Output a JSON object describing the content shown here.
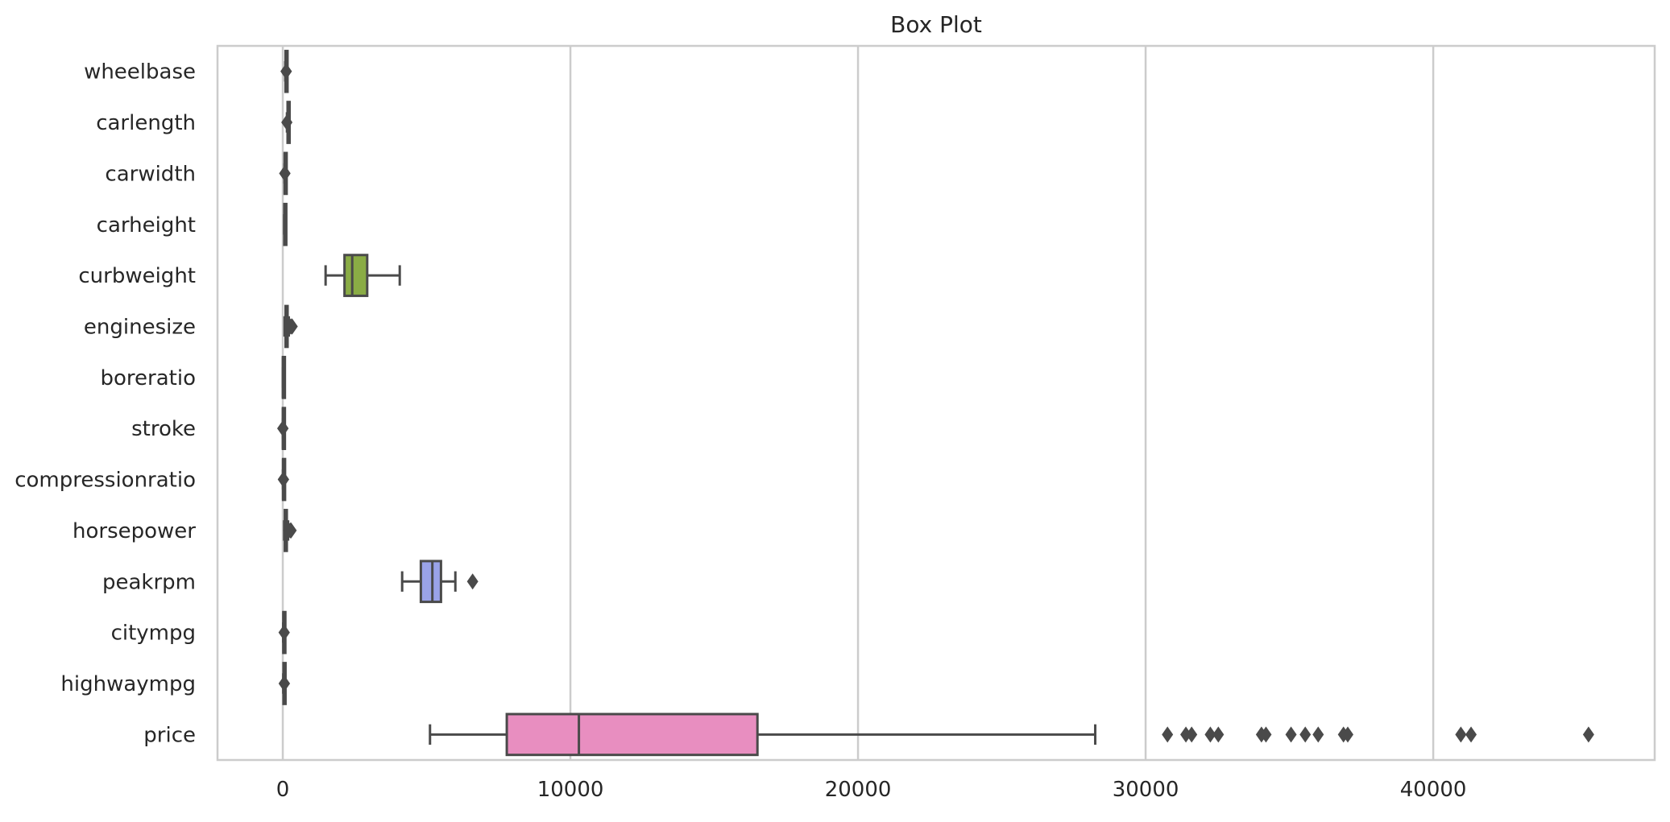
{
  "chart_data": {
    "type": "box",
    "orientation": "horizontal",
    "title": "Box Plot",
    "xlabel": "",
    "ylabel": "",
    "xlim": [
      -2270,
      47700
    ],
    "xticks": [
      0,
      10000,
      20000,
      30000,
      40000
    ],
    "xtick_labels": [
      "0",
      "10000",
      "20000",
      "30000",
      "40000"
    ],
    "grid": "vertical",
    "categories": [
      "wheelbase",
      "carlength",
      "carwidth",
      "carheight",
      "curbweight",
      "enginesize",
      "boreratio",
      "stroke",
      "compressionratio",
      "horsepower",
      "peakrpm",
      "citympg",
      "highwaympg",
      "price"
    ],
    "boxes": [
      {
        "name": "wheelbase",
        "color": "#e08b8b",
        "whislo": 86.6,
        "q1": 94.5,
        "med": 97.0,
        "q3": 102.4,
        "whishi": 114.2,
        "fliers": [
          115.6,
          115.6,
          120.9
        ]
      },
      {
        "name": "carlength",
        "color": "#e09c6a",
        "whislo": 144.6,
        "q1": 166.3,
        "med": 173.2,
        "q3": 183.1,
        "whishi": 208.1,
        "fliers": [
          141.1
        ]
      },
      {
        "name": "carwidth",
        "color": "#c4a55a",
        "whislo": 60.3,
        "q1": 64.1,
        "med": 65.5,
        "q3": 66.9,
        "whishi": 70.9,
        "fliers": [
          71.4,
          71.7,
          72.0,
          72.3
        ]
      },
      {
        "name": "carheight",
        "color": "#a3ae58",
        "whislo": 47.8,
        "q1": 52.0,
        "med": 54.1,
        "q3": 55.5,
        "whishi": 59.8,
        "fliers": []
      },
      {
        "name": "curbweight",
        "color": "#8aac45",
        "whislo": 1488,
        "q1": 2145,
        "med": 2414,
        "q3": 2935,
        "whishi": 4066,
        "fliers": []
      },
      {
        "name": "enginesize",
        "color": "#5fb37a",
        "whislo": 61,
        "q1": 97,
        "med": 120,
        "q3": 141,
        "whishi": 209,
        "fliers": [
          234,
          258,
          304,
          308,
          326
        ]
      },
      {
        "name": "boreratio",
        "color": "#5fb5a3",
        "whislo": 2.54,
        "q1": 3.15,
        "med": 3.31,
        "q3": 3.58,
        "whishi": 3.94,
        "fliers": []
      },
      {
        "name": "stroke",
        "color": "#5fb1bd",
        "whislo": 2.64,
        "q1": 3.11,
        "med": 3.29,
        "q3": 3.41,
        "whishi": 3.86,
        "fliers": [
          2.07,
          2.19,
          4.17
        ]
      },
      {
        "name": "compressionratio",
        "color": "#66a9d6",
        "whislo": 7.0,
        "q1": 8.6,
        "med": 9.0,
        "q3": 9.4,
        "whishi": 10.5,
        "fliers": [
          21.0,
          22.0,
          23.0
        ]
      },
      {
        "name": "horsepower",
        "color": "#7ea4e0",
        "whislo": 48,
        "q1": 70,
        "med": 95,
        "q3": 116,
        "whishi": 184,
        "fliers": [
          200,
          207,
          262,
          288
        ]
      },
      {
        "name": "peakrpm",
        "color": "#9aa3e8",
        "whislo": 4150,
        "q1": 4800,
        "med": 5200,
        "q3": 5500,
        "whishi": 6000,
        "fliers": [
          6600
        ]
      },
      {
        "name": "citympg",
        "color": "#c48fe0",
        "whislo": 13,
        "q1": 19,
        "med": 24,
        "q3": 30,
        "whishi": 45,
        "fliers": [
          47,
          49
        ]
      },
      {
        "name": "highwaympg",
        "color": "#e08ed0",
        "whislo": 16,
        "q1": 25,
        "med": 30,
        "q3": 34,
        "whishi": 47,
        "fliers": [
          50,
          53,
          54
        ]
      },
      {
        "name": "price",
        "color": "#e88ec0",
        "whislo": 5118,
        "q1": 7788,
        "med": 10295,
        "q3": 16503,
        "whishi": 28248,
        "fliers": [
          30760,
          31400,
          31600,
          32250,
          32528,
          34028,
          34184,
          35056,
          35550,
          36000,
          36880,
          37028,
          40960,
          41315,
          45400
        ]
      }
    ]
  }
}
